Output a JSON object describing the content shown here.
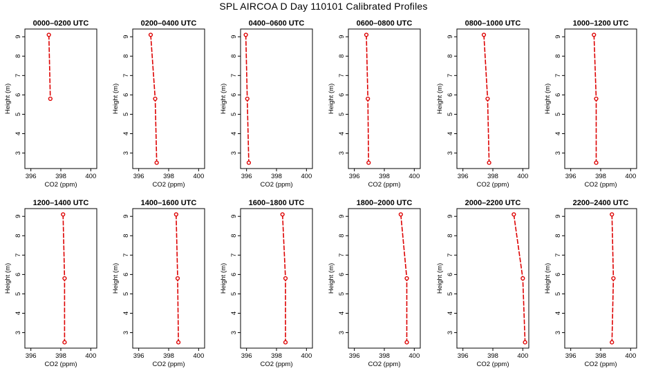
{
  "title": "SPL AIRCOA D  Day 110101  Calibrated Profiles",
  "colors": {
    "profile": "#dd0000",
    "axis": "#000000"
  },
  "chart_data": [
    {
      "type": "line",
      "title": "0000–0200 UTC",
      "xlabel": "CO2 (ppm)",
      "ylabel": "Height (m)",
      "xlim": [
        395.6,
        400.4
      ],
      "ylim": [
        2.2,
        9.4
      ],
      "xticks": [
        396,
        398,
        400
      ],
      "yticks": [
        3,
        4,
        5,
        6,
        7,
        8,
        9
      ],
      "points": [
        {
          "x": 397.2,
          "y": 9.1
        },
        {
          "x": 397.3,
          "y": 5.8
        }
      ]
    },
    {
      "type": "line",
      "title": "0200–0400 UTC",
      "xlabel": "CO2 (ppm)",
      "ylabel": "Height (m)",
      "xlim": [
        395.6,
        400.4
      ],
      "ylim": [
        2.2,
        9.4
      ],
      "xticks": [
        396,
        398,
        400
      ],
      "yticks": [
        3,
        4,
        5,
        6,
        7,
        8,
        9
      ],
      "points": [
        {
          "x": 396.8,
          "y": 9.1
        },
        {
          "x": 397.1,
          "y": 5.8
        },
        {
          "x": 397.2,
          "y": 2.5
        }
      ]
    },
    {
      "type": "line",
      "title": "0400–0600 UTC",
      "xlabel": "CO2 (ppm)",
      "ylabel": "Height (m)",
      "xlim": [
        395.6,
        400.4
      ],
      "ylim": [
        2.2,
        9.4
      ],
      "xticks": [
        396,
        398,
        400
      ],
      "yticks": [
        3,
        4,
        5,
        6,
        7,
        8,
        9
      ],
      "points": [
        {
          "x": 395.95,
          "y": 9.1
        },
        {
          "x": 396.05,
          "y": 5.8
        },
        {
          "x": 396.15,
          "y": 2.5
        }
      ]
    },
    {
      "type": "line",
      "title": "0600–0800 UTC",
      "xlabel": "CO2 (ppm)",
      "ylabel": "Height (m)",
      "xlim": [
        395.6,
        400.4
      ],
      "ylim": [
        2.2,
        9.4
      ],
      "xticks": [
        396,
        398,
        400
      ],
      "yticks": [
        3,
        4,
        5,
        6,
        7,
        8,
        9
      ],
      "points": [
        {
          "x": 396.8,
          "y": 9.1
        },
        {
          "x": 396.9,
          "y": 5.8
        },
        {
          "x": 396.95,
          "y": 2.5
        }
      ]
    },
    {
      "type": "line",
      "title": "0800–1000 UTC",
      "xlabel": "CO2 (ppm)",
      "ylabel": "Height (m)",
      "xlim": [
        395.6,
        400.4
      ],
      "ylim": [
        2.2,
        9.4
      ],
      "xticks": [
        396,
        398,
        400
      ],
      "yticks": [
        3,
        4,
        5,
        6,
        7,
        8,
        9
      ],
      "points": [
        {
          "x": 397.4,
          "y": 9.1
        },
        {
          "x": 397.65,
          "y": 5.8
        },
        {
          "x": 397.75,
          "y": 2.5
        }
      ]
    },
    {
      "type": "line",
      "title": "1000–1200 UTC",
      "xlabel": "CO2 (ppm)",
      "ylabel": "Height (m)",
      "xlim": [
        395.6,
        400.4
      ],
      "ylim": [
        2.2,
        9.4
      ],
      "xticks": [
        396,
        398,
        400
      ],
      "yticks": [
        3,
        4,
        5,
        6,
        7,
        8,
        9
      ],
      "points": [
        {
          "x": 397.55,
          "y": 9.1
        },
        {
          "x": 397.7,
          "y": 5.8
        },
        {
          "x": 397.7,
          "y": 2.5
        }
      ]
    },
    {
      "type": "line",
      "title": "1200–1400 UTC",
      "xlabel": "CO2 (ppm)",
      "ylabel": "Height (m)",
      "xlim": [
        395.6,
        400.4
      ],
      "ylim": [
        2.2,
        9.4
      ],
      "xticks": [
        396,
        398,
        400
      ],
      "yticks": [
        3,
        4,
        5,
        6,
        7,
        8,
        9
      ],
      "points": [
        {
          "x": 398.15,
          "y": 9.1
        },
        {
          "x": 398.25,
          "y": 5.8
        },
        {
          "x": 398.25,
          "y": 2.5
        }
      ]
    },
    {
      "type": "line",
      "title": "1400–1600 UTC",
      "xlabel": "CO2 (ppm)",
      "ylabel": "Height (m)",
      "xlim": [
        395.6,
        400.4
      ],
      "ylim": [
        2.2,
        9.4
      ],
      "xticks": [
        396,
        398,
        400
      ],
      "yticks": [
        3,
        4,
        5,
        6,
        7,
        8,
        9
      ],
      "points": [
        {
          "x": 398.5,
          "y": 9.1
        },
        {
          "x": 398.6,
          "y": 5.8
        },
        {
          "x": 398.65,
          "y": 2.5
        }
      ]
    },
    {
      "type": "line",
      "title": "1600–1800 UTC",
      "xlabel": "CO2 (ppm)",
      "ylabel": "Height (m)",
      "xlim": [
        395.6,
        400.4
      ],
      "ylim": [
        2.2,
        9.4
      ],
      "xticks": [
        396,
        398,
        400
      ],
      "yticks": [
        3,
        4,
        5,
        6,
        7,
        8,
        9
      ],
      "points": [
        {
          "x": 398.4,
          "y": 9.1
        },
        {
          "x": 398.6,
          "y": 5.8
        },
        {
          "x": 398.6,
          "y": 2.5
        }
      ]
    },
    {
      "type": "line",
      "title": "1800–2000 UTC",
      "xlabel": "CO2 (ppm)",
      "ylabel": "Height (m)",
      "xlim": [
        395.6,
        400.4
      ],
      "ylim": [
        2.2,
        9.4
      ],
      "xticks": [
        396,
        398,
        400
      ],
      "yticks": [
        3,
        4,
        5,
        6,
        7,
        8,
        9
      ],
      "points": [
        {
          "x": 399.1,
          "y": 9.1
        },
        {
          "x": 399.5,
          "y": 5.8
        },
        {
          "x": 399.5,
          "y": 2.5
        }
      ]
    },
    {
      "type": "line",
      "title": "2000–2200 UTC",
      "xlabel": "CO2 (ppm)",
      "ylabel": "Height (m)",
      "xlim": [
        395.6,
        400.4
      ],
      "ylim": [
        2.2,
        9.4
      ],
      "xticks": [
        396,
        398,
        400
      ],
      "yticks": [
        3,
        4,
        5,
        6,
        7,
        8,
        9
      ],
      "points": [
        {
          "x": 399.4,
          "y": 9.1
        },
        {
          "x": 400.0,
          "y": 5.8
        },
        {
          "x": 400.15,
          "y": 2.5
        }
      ]
    },
    {
      "type": "line",
      "title": "2200–2400 UTC",
      "xlabel": "CO2 (ppm)",
      "ylabel": "Height (m)",
      "xlim": [
        395.6,
        400.4
      ],
      "ylim": [
        2.2,
        9.4
      ],
      "xticks": [
        396,
        398,
        400
      ],
      "yticks": [
        3,
        4,
        5,
        6,
        7,
        8,
        9
      ],
      "points": [
        {
          "x": 398.75,
          "y": 9.1
        },
        {
          "x": 398.85,
          "y": 5.8
        },
        {
          "x": 398.75,
          "y": 2.5
        }
      ]
    }
  ]
}
